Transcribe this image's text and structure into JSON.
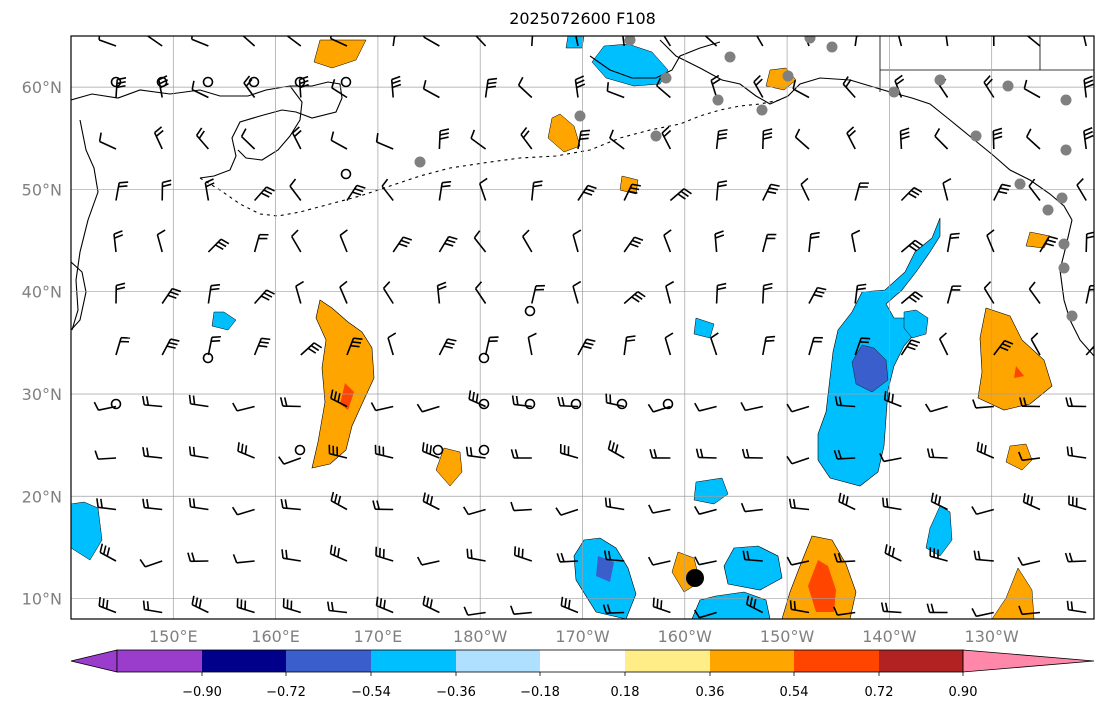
{
  "title": "2025072600 F108",
  "axes": {
    "lat_labels": [
      {
        "lat": 10,
        "text": "10°N"
      },
      {
        "lat": 20,
        "text": "20°N"
      },
      {
        "lat": 30,
        "text": "30°N"
      },
      {
        "lat": 40,
        "text": "40°N"
      },
      {
        "lat": 50,
        "text": "50°N"
      },
      {
        "lat": 60,
        "text": "60°N"
      }
    ],
    "lon_labels": [
      {
        "lon": 150,
        "text": "150°E"
      },
      {
        "lon": 160,
        "text": "160°E"
      },
      {
        "lon": 170,
        "text": "170°E"
      },
      {
        "lon": 180,
        "text": "180°W"
      },
      {
        "lon": 190,
        "text": "170°W"
      },
      {
        "lon": 200,
        "text": "160°W"
      },
      {
        "lon": 210,
        "text": "150°W"
      },
      {
        "lon": 220,
        "text": "140°W"
      },
      {
        "lon": 230,
        "text": "130°W"
      }
    ],
    "lon_range": [
      140,
      240
    ],
    "lat_range": [
      8,
      65
    ],
    "grid": true
  },
  "colorbar": {
    "levels": [
      -0.9,
      -0.72,
      -0.54,
      -0.36,
      -0.18,
      0.18,
      0.36,
      0.54,
      0.72,
      0.9
    ],
    "labels": [
      "−0.90",
      "−0.72",
      "−0.54",
      "−0.36",
      "−0.18",
      "0.18",
      "0.36",
      "0.54",
      "0.72",
      "0.90"
    ],
    "colors": [
      "#9a3ccc",
      "#00008b",
      "#3a5fcd",
      "#00bfff",
      "#b0e0ff",
      "#ffffff",
      "#ffee88",
      "#ffa500",
      "#ff4500",
      "#b22222",
      "#ff88aa"
    ]
  },
  "colors": {
    "coast": "#000000",
    "grid": "#a0a0a0",
    "station": "#808080",
    "axis_text": "#808080"
  }
}
